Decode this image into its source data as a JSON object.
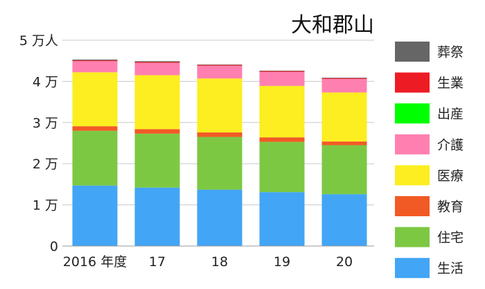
{
  "chart_data": {
    "type": "bar",
    "stacked": true,
    "title": "大和郡山",
    "categories": [
      "2016 年度",
      "17",
      "18",
      "19",
      "20"
    ],
    "y_ticks": [
      "0",
      "1 万",
      "2 万",
      "3 万",
      "4 万",
      "5 万人"
    ],
    "ylim": [
      0,
      50000
    ],
    "grid": true,
    "legend_position": "right",
    "series": [
      {
        "name": "生活",
        "color": "#42a5f5",
        "values": [
          14700,
          14200,
          13700,
          13100,
          12600
        ]
      },
      {
        "name": "住宅",
        "color": "#7dc843",
        "values": [
          13300,
          13100,
          12800,
          12200,
          11900
        ]
      },
      {
        "name": "教育",
        "color": "#f15a24",
        "values": [
          1100,
          1100,
          1100,
          1100,
          900
        ]
      },
      {
        "name": "医療",
        "color": "#fcee21",
        "values": [
          13100,
          13100,
          13100,
          12500,
          11900
        ]
      },
      {
        "name": "介護",
        "color": "#ff80b0",
        "values": [
          2700,
          3000,
          3100,
          3400,
          3300
        ]
      },
      {
        "name": "出産",
        "color": "#00ff00",
        "values": [
          0,
          0,
          0,
          0,
          0
        ]
      },
      {
        "name": "生業",
        "color": "#ed1c24",
        "values": [
          200,
          200,
          200,
          200,
          200
        ]
      },
      {
        "name": "葬祭",
        "color": "#666666",
        "values": [
          200,
          200,
          100,
          100,
          100
        ]
      }
    ]
  }
}
